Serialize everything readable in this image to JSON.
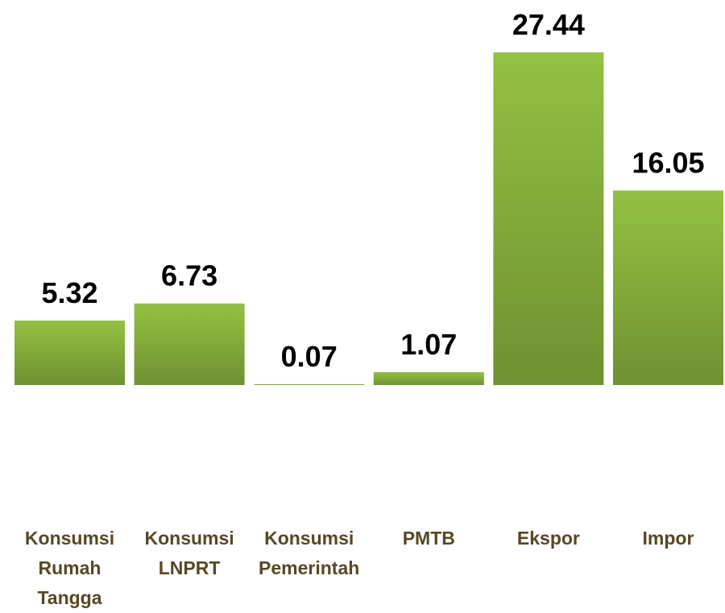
{
  "chart_data": {
    "type": "bar",
    "categories": [
      "Konsumsi Rumah Tangga",
      "Konsumsi LNPRT",
      "Konsumsi Pemerintah",
      "PMTB",
      "Ekspor",
      "Impor"
    ],
    "values": [
      5.32,
      6.73,
      0.07,
      1.07,
      27.44,
      16.05
    ],
    "color": "#93c142"
  }
}
